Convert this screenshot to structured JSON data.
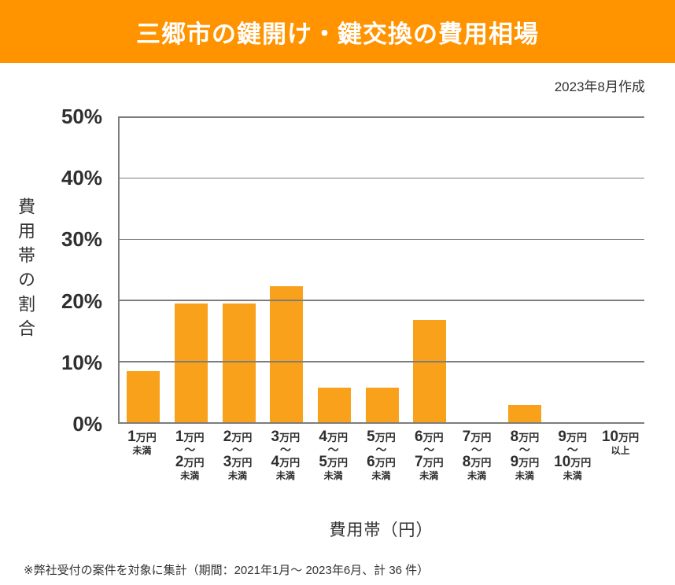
{
  "header": {
    "title": "三郷市の鍵開け・鍵交換の費用相場",
    "date_note": "2023年8月作成"
  },
  "colors": {
    "banner_bg": "#FF9300",
    "banner_text": "#FFFFFF",
    "bar": "#F9A11B",
    "axis": "#7D7D7D",
    "text": "#2F2F2F"
  },
  "chart_data": {
    "type": "bar",
    "title": "三郷市の鍵開け・鍵交換の費用相場",
    "xlabel": "費用帯（円）",
    "ylabel": "費用帯の割合",
    "ylim": [
      0,
      50
    ],
    "yticks": [
      0,
      10,
      20,
      30,
      40,
      50
    ],
    "ytick_labels": [
      "0%",
      "10%",
      "20%",
      "30%",
      "40%",
      "50%"
    ],
    "grid": true,
    "legend_position": "none",
    "categories": [
      "1万円未満",
      "1万円〜2万円未満",
      "2万円〜3万円未満",
      "3万円〜4万円未満",
      "4万円〜5万円未満",
      "5万円〜6万円未満",
      "6万円〜7万円未満",
      "7万円〜8万円未満",
      "8万円〜9万円未満",
      "9万円〜10万円未満",
      "10万円以上"
    ],
    "category_label_lines": [
      [
        "1万円",
        "未満"
      ],
      [
        "1万円",
        "〜",
        "2万円",
        "未満"
      ],
      [
        "2万円",
        "〜",
        "3万円",
        "未満"
      ],
      [
        "3万円",
        "〜",
        "4万円",
        "未満"
      ],
      [
        "4万円",
        "〜",
        "5万円",
        "未満"
      ],
      [
        "5万円",
        "〜",
        "6万円",
        "未満"
      ],
      [
        "6万円",
        "〜",
        "7万円",
        "未満"
      ],
      [
        "7万円",
        "〜",
        "8万円",
        "未満"
      ],
      [
        "8万円",
        "〜",
        "9万円",
        "未満"
      ],
      [
        "9万円",
        "〜",
        "10万円",
        "未満"
      ],
      [
        "10万円",
        "以上"
      ]
    ],
    "values": [
      8.3,
      19.4,
      19.4,
      22.2,
      5.6,
      5.6,
      16.7,
      0,
      2.8,
      0,
      0
    ]
  },
  "footnote": "※弊社受付の案件を対象に集計（期間：2021年1月～ 2023年6月、計 36 件）"
}
